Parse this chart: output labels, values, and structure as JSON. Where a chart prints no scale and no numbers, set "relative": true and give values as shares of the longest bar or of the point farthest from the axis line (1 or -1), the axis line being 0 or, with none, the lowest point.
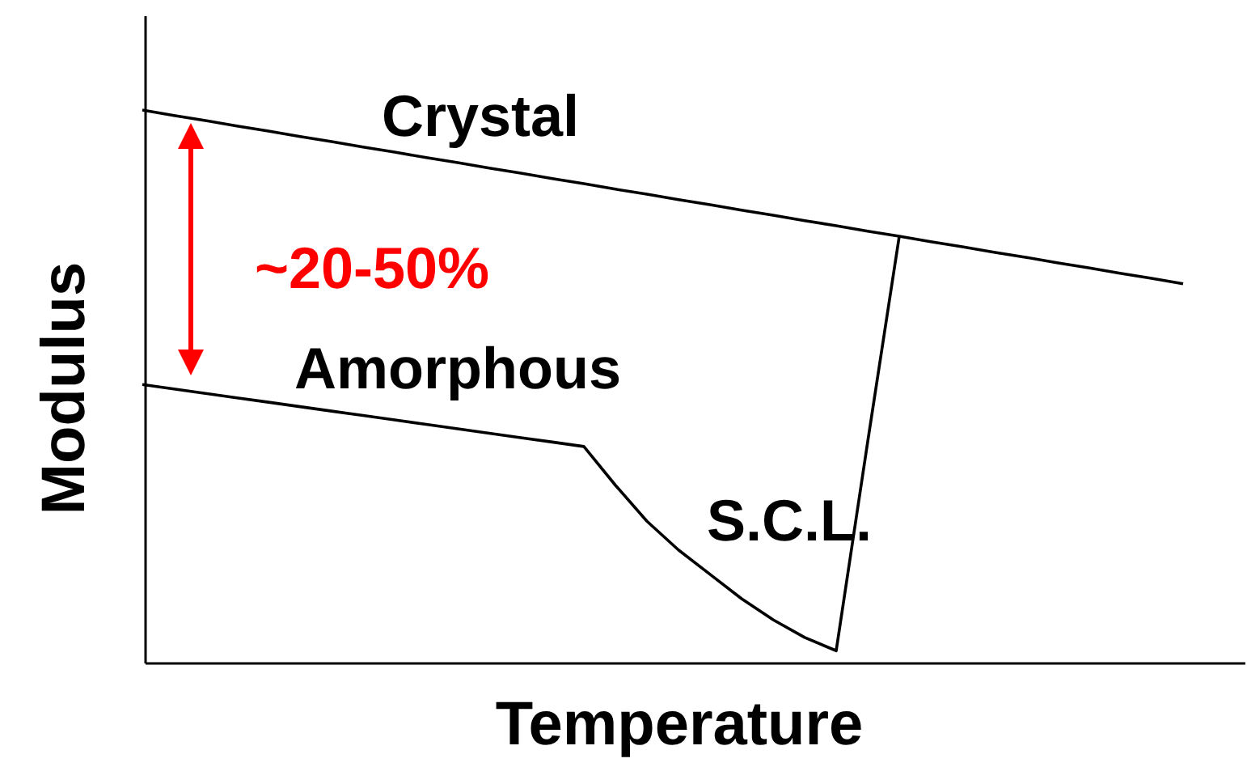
{
  "chart_data": {
    "type": "line",
    "relative": true,
    "xlabel": "Temperature",
    "ylabel": "Modulus",
    "legend": false,
    "marker": "none",
    "line_style": "solid",
    "annotations": [
      "~20-50%",
      "S.C.L."
    ],
    "categories": [
      null,
      null,
      null,
      null,
      null,
      null,
      null,
      null,
      null,
      null,
      null,
      null,
      null,
      null,
      null,
      null,
      null,
      null,
      null,
      null,
      null,
      null,
      null,
      null,
      null,
      null,
      null,
      null,
      null,
      null,
      null,
      null,
      null,
      null
    ],
    "series": [
      {
        "name": "Crystal",
        "color": "#000000",
        "values": [
          1.0,
          0.99,
          0.981,
          0.971,
          0.962,
          0.952,
          0.943,
          0.933,
          0.924,
          0.914,
          0.905,
          0.895,
          0.886,
          0.876,
          0.867,
          0.857,
          0.848,
          0.838,
          0.829,
          0.819,
          0.81,
          0.8,
          0.791,
          0.781,
          0.772,
          0.762,
          0.753,
          0.743,
          0.734,
          0.724,
          0.715,
          0.705,
          0.696,
          0.686
        ]
      },
      {
        "name": "Amorphous",
        "color": "#000000",
        "values": [
          0.504,
          0.496,
          0.488,
          0.48,
          0.472,
          0.464,
          0.456,
          0.448,
          0.44,
          0.432,
          0.424,
          0.416,
          0.408,
          0.4,
          0.392,
          0.322,
          0.257,
          0.205,
          0.161,
          0.117,
          0.079,
          0.047,
          0.023,
          0.401,
          0.772,
          null,
          null,
          null,
          null,
          null,
          null,
          null,
          null,
          null
        ]
      }
    ]
  }
}
